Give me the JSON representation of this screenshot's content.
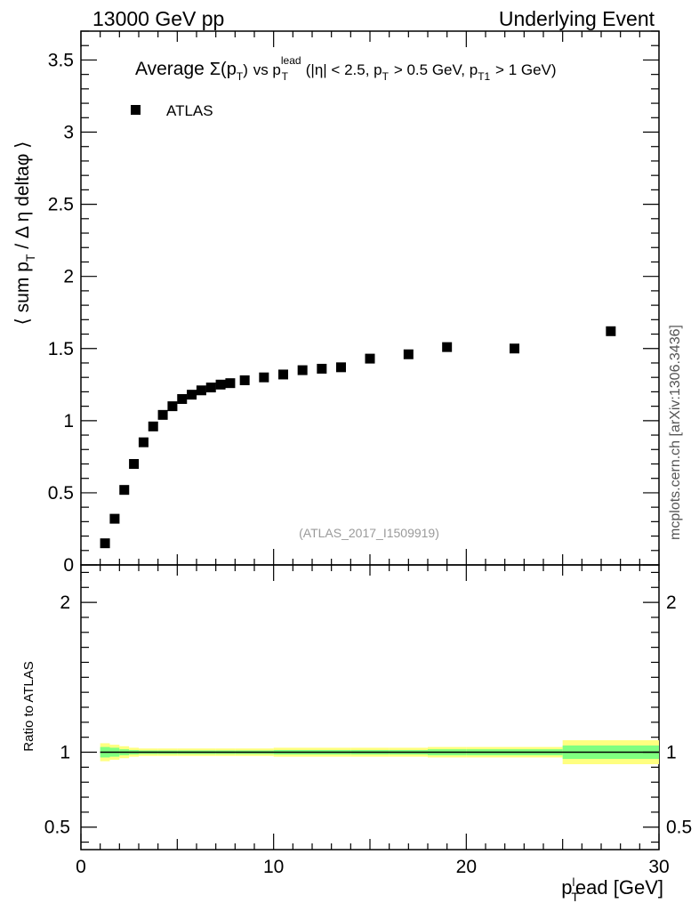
{
  "header": {
    "left": "13000 GeV pp",
    "right": "Underlying Event"
  },
  "side_note": "mcplots.cern.ch [arXiv:1306.3436]",
  "watermark": "(ATLAS_2017_I1509919)",
  "colors": {
    "marker": "#000000",
    "band_outer": "#ffff80",
    "band_inner": "#80ff80",
    "ratio_line": "#000000",
    "watermark": "#9a9a9a"
  },
  "chart_data": [
    {
      "type": "scatter",
      "title": "Average Σ(p_T) vs p_T^lead (|η| < 2.5, p_T > 0.5 GeV, p_T1 > 1 GeV)",
      "title_parts": {
        "average": "Average",
        "sigma": "Σ(p",
        "t_sub": "T",
        "close": ")",
        "vs": "vs p",
        "lead_sup": "lead",
        "lead_sub": "T",
        "cond1": "(|η| < 2.5, p",
        "cond1_sub": "T",
        "cond2": "> 0.5 GeV, p",
        "cond2_sub": "T1",
        "cond3": "> 1 GeV)"
      },
      "ylabel": "⟨ sum p_T / Δ η deltaφ ⟩",
      "ylabel_parts": {
        "a": "⟨ sum p",
        "sub": "T",
        "b": " / Δ η deltaφ ⟩"
      },
      "xlim": [
        0,
        30
      ],
      "ylim": [
        0,
        3.7
      ],
      "y_ticks": [
        "0",
        "0.5",
        "1",
        "1.5",
        "2",
        "2.5",
        "3",
        "3.5"
      ],
      "y_tick_values": [
        0,
        0.5,
        1,
        1.5,
        2,
        2.5,
        3,
        3.5
      ],
      "legend": {
        "position": "top-left",
        "entries": [
          "ATLAS"
        ]
      },
      "series": [
        {
          "name": "ATLAS",
          "x": [
            1.25,
            1.75,
            2.25,
            2.75,
            3.25,
            3.75,
            4.25,
            4.75,
            5.25,
            5.75,
            6.25,
            6.75,
            7.25,
            7.75,
            8.5,
            9.5,
            10.5,
            11.5,
            12.5,
            13.5,
            15.0,
            17.0,
            19.0,
            22.5,
            27.5
          ],
          "y": [
            0.15,
            0.32,
            0.52,
            0.7,
            0.85,
            0.96,
            1.04,
            1.1,
            1.15,
            1.18,
            1.21,
            1.23,
            1.25,
            1.26,
            1.28,
            1.3,
            1.32,
            1.35,
            1.36,
            1.37,
            1.43,
            1.46,
            1.51,
            1.5,
            1.62
          ]
        }
      ]
    },
    {
      "type": "line",
      "ylabel": "Ratio to ATLAS",
      "xlabel": "p_T^lead [GeV]",
      "xlabel_parts": {
        "p": "p",
        "sub": "T",
        "sup": "l",
        "rest": "ead [GeV]"
      },
      "xlim": [
        0,
        30
      ],
      "ylim": [
        0.35,
        2.25
      ],
      "x_ticks": [
        "0",
        "10",
        "20",
        "30"
      ],
      "x_tick_values": [
        0,
        10,
        20,
        30
      ],
      "y_ticks": [
        "0.5",
        "1",
        "2"
      ],
      "y_tick_values": [
        0.5,
        1,
        2
      ],
      "ratio_value": 1.0,
      "bands": {
        "x_edges": [
          1.0,
          1.5,
          2.0,
          2.5,
          3.0,
          4.0,
          5.0,
          6.0,
          7.0,
          8.0,
          9.0,
          10.0,
          12.0,
          14.0,
          16.0,
          18.0,
          20.0,
          25.0,
          30.0
        ],
        "outer": [
          0.06,
          0.05,
          0.04,
          0.03,
          0.025,
          0.025,
          0.025,
          0.025,
          0.025,
          0.025,
          0.025,
          0.03,
          0.03,
          0.03,
          0.03,
          0.035,
          0.035,
          0.08
        ],
        "inner": [
          0.035,
          0.03,
          0.02,
          0.015,
          0.012,
          0.012,
          0.012,
          0.012,
          0.012,
          0.012,
          0.012,
          0.015,
          0.015,
          0.015,
          0.015,
          0.02,
          0.02,
          0.045
        ]
      }
    }
  ]
}
